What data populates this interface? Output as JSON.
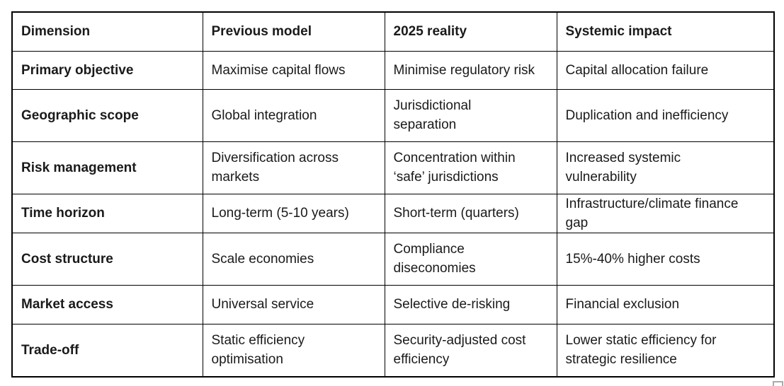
{
  "table": {
    "border_color": "#000000",
    "text_color": "#1a1a1a",
    "columns": {
      "dimension": "Dimension",
      "previous_model": "Previous model",
      "reality_2025": "2025 reality",
      "systemic_impact": "Systemic impact"
    },
    "rows": [
      {
        "dimension": "Primary objective",
        "previous_model": "Maximise capital flows",
        "reality_2025": "Minimise regulatory risk",
        "systemic_impact": "Capital allocation failure"
      },
      {
        "dimension": "Geographic scope",
        "previous_model": "Global integration",
        "reality_2025": "Jurisdictional\nseparation",
        "systemic_impact": "Duplication and inefficiency"
      },
      {
        "dimension": "Risk management",
        "previous_model": "Diversification across\nmarkets",
        "reality_2025": "Concentration within\n‘safe’ jurisdictions",
        "systemic_impact": "Increased systemic\nvulnerability"
      },
      {
        "dimension": "Time horizon",
        "previous_model": "Long-term (5-10 years)",
        "reality_2025": "Short-term (quarters)",
        "systemic_impact": "Infrastructure/climate finance\ngap"
      },
      {
        "dimension": "Cost structure",
        "previous_model": "Scale economies",
        "reality_2025": "Compliance\ndiseconomies",
        "systemic_impact": "15%-40% higher costs"
      },
      {
        "dimension": "Market access",
        "previous_model": "Universal service",
        "reality_2025": "Selective de-risking",
        "systemic_impact": "Financial exclusion"
      },
      {
        "dimension": "Trade-off",
        "previous_model": "Static efficiency\noptimisation",
        "reality_2025": "Security-adjusted cost\nefficiency",
        "systemic_impact": "Lower static efficiency for\nstrategic resilience"
      }
    ]
  },
  "artifacts": {
    "resize_handle_color": "#ababab"
  }
}
